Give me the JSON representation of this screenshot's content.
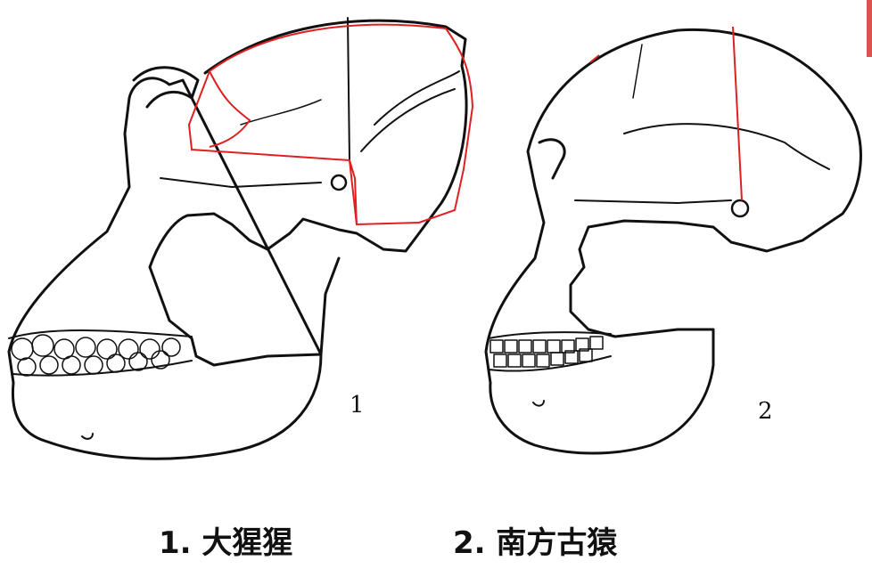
{
  "figure_labels": [
    "1",
    "2"
  ],
  "captions": [
    "1. 大猩猩",
    "2. 南方古猿"
  ],
  "colors": {
    "ink": "#111111",
    "annotation": "#e02020",
    "edge_mark": "#d9534f"
  }
}
